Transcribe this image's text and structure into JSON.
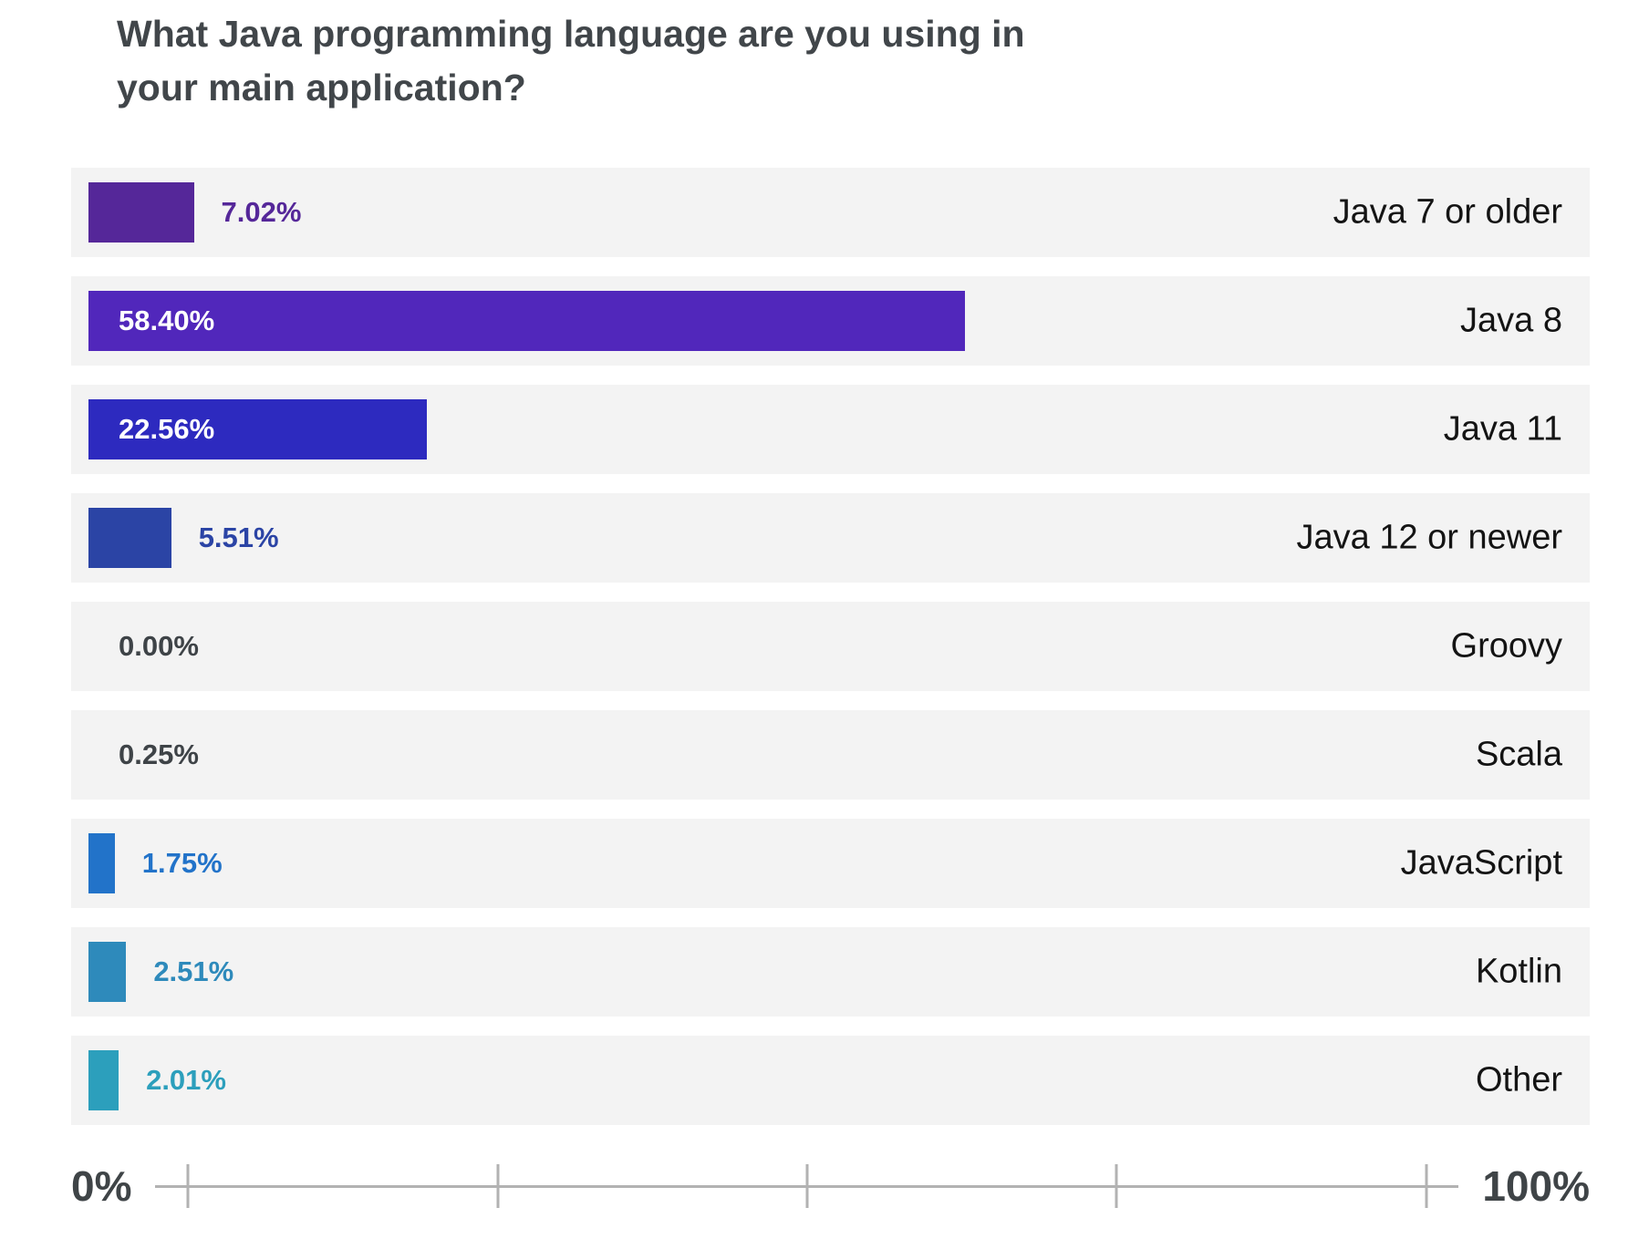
{
  "title": "What Java programming language are you using in your main application?",
  "colors": {
    "background": "#ffffff",
    "row_background": "#f3f3f3",
    "title_text": "#41464a",
    "category_text": "#141414",
    "inside_value_text": "#ffffff",
    "zero_value_text": "#3e4347",
    "axis_text": "#3f4447",
    "axis_line": "#b2b2b2"
  },
  "axis": {
    "min_label": "0%",
    "max_label": "100%",
    "ticks_pct": [
      0,
      25,
      50,
      75,
      100
    ]
  },
  "chart_data": {
    "type": "bar",
    "orientation": "horizontal",
    "title": "What Java programming language are you using in your main application?",
    "xlabel": "",
    "ylabel": "",
    "xlim": [
      0,
      100
    ],
    "unit": "percent",
    "legend": "none",
    "grid": "off",
    "categories": [
      "Java 7 or older",
      "Java 8",
      "Java 11",
      "Java 12 or newer",
      "Groovy",
      "Scala",
      "JavaScript",
      "Kotlin",
      "Other"
    ],
    "values": [
      7.02,
      58.4,
      22.56,
      5.51,
      0.0,
      0.25,
      1.75,
      2.51,
      2.01
    ],
    "bars": [
      {
        "slug": "java-7-or-older",
        "label": "Java 7 or older",
        "value": 7.02,
        "display": "7.02%",
        "show_bar": true,
        "color": "#552799",
        "label_color": "#552799",
        "label_inside": false
      },
      {
        "slug": "java-8",
        "label": "Java 8",
        "value": 58.4,
        "display": "58.40%",
        "show_bar": true,
        "color": "#5127bb",
        "label_color": "#ffffff",
        "label_inside": true
      },
      {
        "slug": "java-11",
        "label": "Java 11",
        "value": 22.56,
        "display": "22.56%",
        "show_bar": true,
        "color": "#2d2abf",
        "label_color": "#ffffff",
        "label_inside": true
      },
      {
        "slug": "java-12-or-newer",
        "label": "Java 12 or newer",
        "value": 5.51,
        "display": "5.51%",
        "show_bar": true,
        "color": "#2b44a5",
        "label_color": "#2b44a5",
        "label_inside": false
      },
      {
        "slug": "groovy",
        "label": "Groovy",
        "value": 0.0,
        "display": "0.00%",
        "show_bar": false,
        "color": null,
        "label_color": "#3e4347",
        "label_inside": false
      },
      {
        "slug": "scala",
        "label": "Scala",
        "value": 0.25,
        "display": "0.25%",
        "show_bar": false,
        "color": null,
        "label_color": "#3e4347",
        "label_inside": false
      },
      {
        "slug": "javascript",
        "label": "JavaScript",
        "value": 1.75,
        "display": "1.75%",
        "show_bar": true,
        "color": "#2273c9",
        "label_color": "#2273c9",
        "label_inside": false
      },
      {
        "slug": "kotlin",
        "label": "Kotlin",
        "value": 2.51,
        "display": "2.51%",
        "show_bar": true,
        "color": "#2e8abb",
        "label_color": "#2e8abb",
        "label_inside": false
      },
      {
        "slug": "other",
        "label": "Other",
        "value": 2.01,
        "display": "2.01%",
        "show_bar": true,
        "color": "#2c9fbc",
        "label_color": "#2c9fbc",
        "label_inside": false
      }
    ]
  }
}
